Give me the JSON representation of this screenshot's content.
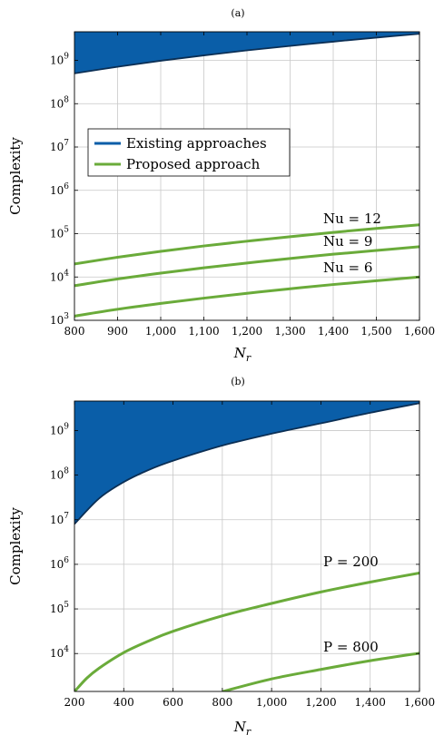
{
  "chart_data": [
    {
      "type": "line",
      "panel_label": "(a)",
      "xlabel": "N",
      "xlabel_sub": "r",
      "ylabel": "Complexity",
      "yscale": "log",
      "xlim": [
        800,
        1600
      ],
      "ylim_exp": [
        3,
        9.66
      ],
      "grid": true,
      "x_ticks": [
        800,
        900,
        1000,
        1100,
        1200,
        1300,
        1400,
        1500,
        1600
      ],
      "x_tick_labels": [
        "800",
        "900",
        "1,000",
        "1,100",
        "1,200",
        "1,300",
        "1,400",
        "1,500",
        "1,600"
      ],
      "y_tick_exps": [
        3,
        4,
        5,
        6,
        7,
        8,
        9
      ],
      "legend": {
        "position": "left-center",
        "entries": [
          {
            "label": "Existing approaches",
            "color": "#0a5ea8"
          },
          {
            "label": "Proposed approach",
            "color": "#6aab3a"
          }
        ]
      },
      "series": [
        {
          "name": "Existing approaches",
          "kind": "band",
          "color": "#0a5ea8",
          "x": [
            800,
            900,
            1000,
            1100,
            1200,
            1300,
            1400,
            1500,
            1600
          ],
          "values": [
            500000000.0,
            710000000.0,
            980000000.0,
            1300000000.0,
            1700000000.0,
            2150000000.0,
            2700000000.0,
            3350000000.0,
            4100000000.0
          ]
        },
        {
          "name": "Nu = 12",
          "color": "#6aab3a",
          "x": [
            800,
            900,
            1000,
            1100,
            1200,
            1300,
            1400,
            1500,
            1600
          ],
          "values": [
            20000.0,
            28500.0,
            39000.0,
            52000.0,
            67000.0,
            85000.0,
            107000.0,
            132000.0,
            160000.0
          ]
        },
        {
          "name": "Nu = 9",
          "color": "#6aab3a",
          "x": [
            800,
            900,
            1000,
            1100,
            1200,
            1300,
            1400,
            1500,
            1600
          ],
          "values": [
            6300.0,
            9000.0,
            12300.0,
            16300.0,
            21000.0,
            26700.0,
            33500.0,
            41000.0,
            50000.0
          ]
        },
        {
          "name": "Nu = 6",
          "color": "#6aab3a",
          "x": [
            800,
            900,
            1000,
            1100,
            1200,
            1300,
            1400,
            1500,
            1600
          ],
          "values": [
            1250.0,
            1800.0,
            2450.0,
            3250.0,
            4200.0,
            5350.0,
            6700.0,
            8200.0,
            10000.0
          ]
        }
      ],
      "annotations": [
        "Nu = 12",
        "Nu = 9",
        "Nu = 6"
      ]
    },
    {
      "type": "line",
      "panel_label": "(b)",
      "xlabel": "N",
      "xlabel_sub": "r",
      "ylabel": "Complexity",
      "yscale": "log",
      "xlim": [
        200,
        1600
      ],
      "ylim_exp": [
        3.15,
        9.66
      ],
      "grid": true,
      "x_ticks": [
        200,
        400,
        600,
        800,
        1000,
        1200,
        1400,
        1600
      ],
      "x_tick_labels": [
        "200",
        "400",
        "600",
        "800",
        "1,000",
        "1,200",
        "1,400",
        "1,600"
      ],
      "y_tick_exps": [
        4,
        5,
        6,
        7,
        8,
        9
      ],
      "series": [
        {
          "name": "Existing approaches",
          "kind": "band",
          "color": "#0a5ea8",
          "x": [
            200,
            300,
            400,
            500,
            600,
            800,
            1000,
            1200,
            1400,
            1600
          ],
          "values": [
            8000000.0,
            30000000.0,
            70000000.0,
            130000000.0,
            210000000.0,
            460000000.0,
            850000000.0,
            1450000000.0,
            2500000000.0,
            4100000000.0
          ]
        },
        {
          "name": "P = 200",
          "color": "#6aab3a",
          "x": [
            200,
            250,
            300,
            400,
            500,
            600,
            800,
            1000,
            1200,
            1400,
            1600
          ],
          "values": [
            1400.0,
            2800.0,
            4700.0,
            10500.0,
            19000.0,
            31500.0,
            70000.0,
            133000.0,
            240000.0,
            400000.0,
            640000.0
          ]
        },
        {
          "name": "P = 800",
          "color": "#6aab3a",
          "x": [
            800,
            1000,
            1200,
            1400,
            1600
          ],
          "values": [
            1400.0,
            2700.0,
            4400.0,
            6900.0,
            10200.0
          ]
        }
      ],
      "annotations": [
        "P = 200",
        "P = 800"
      ]
    }
  ]
}
